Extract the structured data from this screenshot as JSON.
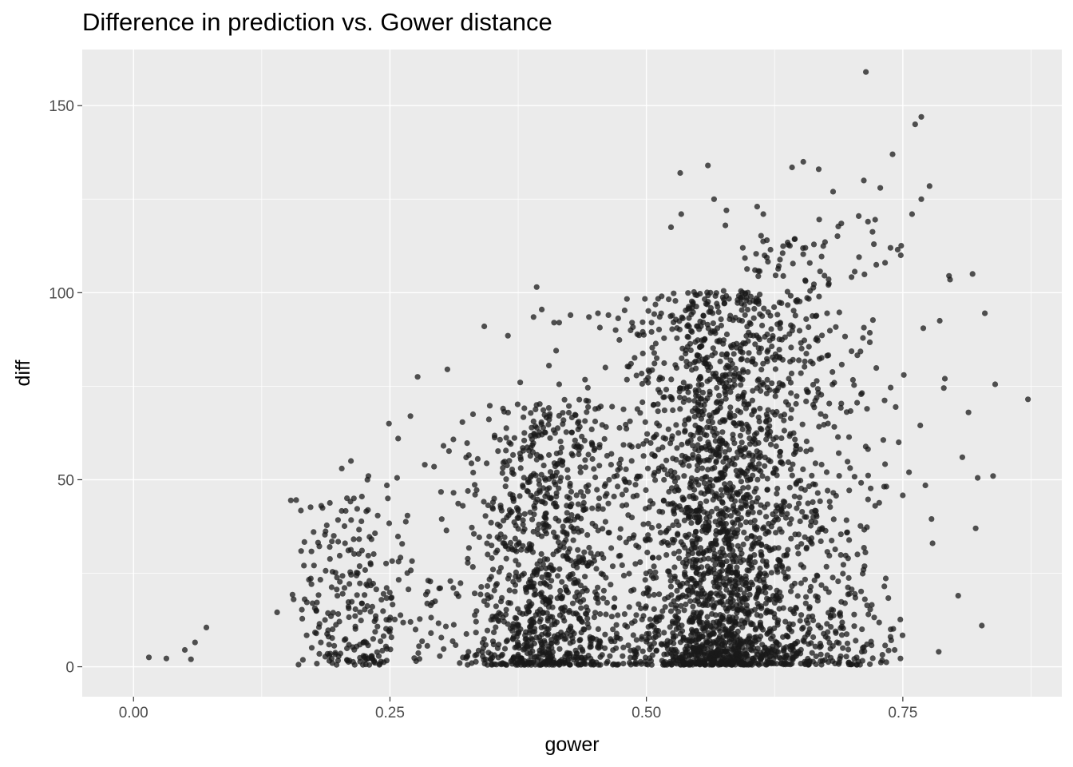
{
  "chart_data": {
    "type": "scatter",
    "title": "Difference in prediction vs. Gower distance",
    "xlabel": "gower",
    "ylabel": "diff",
    "xlim": [
      -0.05,
      0.905
    ],
    "ylim": [
      -8,
      165
    ],
    "x_ticks": [
      0.0,
      0.25,
      0.5,
      0.75
    ],
    "x_tick_labels": [
      "0.00",
      "0.25",
      "0.50",
      "0.75"
    ],
    "y_ticks": [
      0,
      50,
      100,
      150
    ],
    "y_tick_labels": [
      "0",
      "50",
      "100",
      "150"
    ],
    "grid": true,
    "panel_color": "#ebebeb",
    "grid_color": "#ffffff",
    "point_color": "#1a1a1a",
    "points": [
      [
        0.015,
        2.5
      ],
      [
        0.032,
        2.2
      ],
      [
        0.05,
        4.5
      ],
      [
        0.056,
        2.0
      ],
      [
        0.06,
        6.5
      ],
      [
        0.071,
        10.5
      ],
      [
        0.714,
        159.0
      ],
      [
        0.768,
        147.0
      ],
      [
        0.762,
        145.0
      ],
      [
        0.56,
        134.0
      ],
      [
        0.653,
        135.0
      ],
      [
        0.642,
        133.5
      ],
      [
        0.668,
        133.0
      ],
      [
        0.74,
        137.0
      ],
      [
        0.533,
        132.0
      ],
      [
        0.712,
        130.0
      ],
      [
        0.728,
        128.0
      ],
      [
        0.776,
        128.5
      ],
      [
        0.682,
        127.0
      ],
      [
        0.768,
        125.0
      ],
      [
        0.566,
        125.0
      ],
      [
        0.608,
        123.0
      ],
      [
        0.578,
        122.0
      ],
      [
        0.534,
        121.0
      ],
      [
        0.614,
        121.0
      ],
      [
        0.759,
        121.0
      ],
      [
        0.707,
        120.5
      ],
      [
        0.723,
        119.5
      ],
      [
        0.716,
        119.0
      ],
      [
        0.69,
        118.5
      ],
      [
        0.524,
        117.5
      ],
      [
        0.577,
        118.0
      ],
      [
        0.738,
        112.0
      ],
      [
        0.745,
        111.5
      ],
      [
        0.748,
        110.0
      ],
      [
        0.594,
        112.0
      ],
      [
        0.655,
        112.0
      ],
      [
        0.621,
        111.5
      ],
      [
        0.795,
        104.5
      ],
      [
        0.818,
        105.0
      ],
      [
        0.796,
        103.5
      ],
      [
        0.393,
        101.5
      ],
      [
        0.39,
        93.5
      ],
      [
        0.398,
        95.5
      ],
      [
        0.342,
        91.0
      ],
      [
        0.365,
        88.5
      ],
      [
        0.41,
        92.0
      ],
      [
        0.415,
        92.0
      ],
      [
        0.426,
        94.0
      ],
      [
        0.444,
        93.5
      ],
      [
        0.463,
        94.0
      ],
      [
        0.47,
        90.0
      ],
      [
        0.486,
        92.0
      ],
      [
        0.505,
        92.0
      ],
      [
        0.786,
        92.5
      ],
      [
        0.77,
        90.5
      ],
      [
        0.79,
        74.5
      ],
      [
        0.791,
        77.0
      ],
      [
        0.83,
        94.5
      ],
      [
        0.84,
        75.5
      ],
      [
        0.872,
        71.5
      ],
      [
        0.306,
        79.5
      ],
      [
        0.277,
        77.5
      ],
      [
        0.249,
        65.0
      ],
      [
        0.258,
        61.0
      ],
      [
        0.27,
        67.0
      ],
      [
        0.212,
        55.0
      ],
      [
        0.203,
        53.0
      ],
      [
        0.229,
        51.0
      ],
      [
        0.228,
        50.0
      ],
      [
        0.247,
        48.5
      ],
      [
        0.257,
        50.5
      ],
      [
        0.284,
        54.0
      ],
      [
        0.293,
        53.5
      ],
      [
        0.312,
        46.5
      ],
      [
        0.333,
        46.0
      ],
      [
        0.331,
        67.5
      ],
      [
        0.377,
        76.0
      ],
      [
        0.415,
        75.5
      ],
      [
        0.412,
        84.5
      ],
      [
        0.405,
        80.5
      ],
      [
        0.46,
        80.0
      ],
      [
        0.485,
        81.0
      ],
      [
        0.808,
        56.0
      ],
      [
        0.814,
        68.0
      ],
      [
        0.838,
        51.0
      ],
      [
        0.823,
        50.5
      ],
      [
        0.821,
        37.0
      ],
      [
        0.804,
        19.0
      ],
      [
        0.827,
        11.0
      ],
      [
        0.785,
        4.0
      ],
      [
        0.779,
        33.0
      ],
      [
        0.772,
        48.5
      ],
      [
        0.778,
        39.5
      ],
      [
        0.767,
        64.5
      ],
      [
        0.751,
        78.0
      ],
      [
        0.746,
        60.0
      ],
      [
        0.756,
        52.0
      ],
      [
        0.742,
        4.5
      ],
      [
        0.738,
        8.0
      ],
      [
        0.715,
        6.0
      ],
      [
        0.705,
        2.5
      ],
      [
        0.71,
        4.0
      ],
      [
        0.318,
        1.0
      ],
      [
        0.333,
        3.0
      ],
      [
        0.315,
        19.5
      ],
      [
        0.29,
        9.0
      ],
      [
        0.294,
        17.5
      ],
      [
        0.299,
        21.0
      ]
    ],
    "clusters": [
      {
        "x_mean": 0.212,
        "x_sd": 0.028,
        "y_max": 45,
        "n": 230
      },
      {
        "x_mean": 0.272,
        "x_sd": 0.02,
        "y_max": 40,
        "n": 40
      },
      {
        "x_mean": 0.398,
        "x_sd": 0.035,
        "y_max": 70,
        "n": 950
      },
      {
        "x_mean": 0.46,
        "x_sd": 0.03,
        "y_max": 78,
        "n": 130
      },
      {
        "x_mean": 0.567,
        "x_sd": 0.038,
        "y_max": 100,
        "n": 2000
      },
      {
        "x_mean": 0.645,
        "x_sd": 0.033,
        "y_max": 115,
        "n": 450
      },
      {
        "x_mean": 0.7,
        "x_sd": 0.025,
        "y_max": 120,
        "n": 150
      }
    ]
  }
}
